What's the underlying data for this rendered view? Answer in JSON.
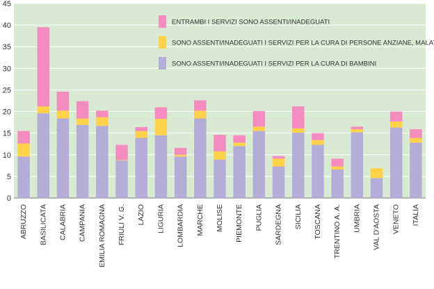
{
  "chart_data": {
    "type": "bar",
    "stacked": true,
    "title": "",
    "xlabel": "",
    "ylabel": "",
    "ylim": [
      0,
      45
    ],
    "yticks": [
      0,
      5,
      10,
      15,
      20,
      25,
      30,
      35,
      40,
      45
    ],
    "grid": true,
    "legend_position": "top-right",
    "background": "#d9ead3",
    "categories": [
      "ABRUZZO",
      "BASILICATA",
      "CALABRIA",
      "CAMPANIA",
      "EMILIA ROMAGNA",
      "FRIULI V. G.",
      "LAZIO",
      "LIGURIA",
      "LOMBARDIA",
      "MARCHE",
      "MOLISE",
      "PIEMONTE",
      "PUGLIA",
      "SARDEGNA",
      "SICILIA",
      "TOSCANA",
      "TRENTINO A. A.",
      "UMBRIA",
      "VAL D'AOSTA",
      "VENETO",
      "ITALIA"
    ],
    "series": [
      {
        "name": "SONO ASSENTI/INADEGUATI I SERVIZI PER LA CURA DI BAMBINI",
        "color": "#b3aed8",
        "values": [
          9.6,
          19.6,
          18.4,
          16.9,
          16.7,
          8.7,
          13.9,
          14.5,
          9.6,
          18.4,
          8.9,
          12.0,
          15.5,
          7.3,
          15.1,
          12.3,
          6.6,
          15.2,
          4.6,
          16.3,
          12.8
        ]
      },
      {
        "name": "SONO ASSENTI/INADEGUATI I SERVIZI PER LA CURA DI PERSONE ANZIANE, MALATE, DISABILI",
        "color": "#ffd24a",
        "values": [
          3.0,
          1.6,
          1.8,
          1.5,
          2.0,
          0.1,
          1.6,
          3.8,
          0.4,
          1.8,
          1.9,
          0.8,
          1.0,
          1.8,
          1.0,
          1.1,
          0.7,
          0.7,
          2.3,
          1.4,
          1.1
        ]
      },
      {
        "name": "ENTRAMBI I SERVIZI SONO ASSENTI/INADEGUATI",
        "color": "#f48cc0",
        "values": [
          2.9,
          18.3,
          4.4,
          4.0,
          1.5,
          3.5,
          0.9,
          2.7,
          1.6,
          2.4,
          3.8,
          1.7,
          3.6,
          0.6,
          5.1,
          1.6,
          1.8,
          0.6,
          0.0,
          2.3,
          2.0
        ]
      }
    ]
  }
}
